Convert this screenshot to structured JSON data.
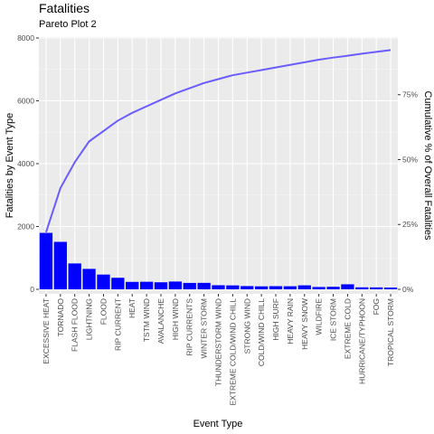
{
  "chart_data": {
    "type": "bar",
    "title": "Fatalities",
    "subtitle": "Pareto Plot 2",
    "xlabel": "Event Type",
    "ylabel": "Fatalities by Event Type",
    "y2label": "Cumulative % of Overall Fatalities",
    "ylim": [
      0,
      8000
    ],
    "yticks": [
      0,
      2000,
      4000,
      6000,
      8000
    ],
    "y2ticks": [
      0,
      25,
      50,
      75
    ],
    "y2tick_labels": [
      "0%",
      "25%",
      "50%",
      "75%"
    ],
    "grid": true,
    "categories": [
      "EXCESSIVE HEAT",
      "TORNADO",
      "FLASH FLOOD",
      "LIGHTNING",
      "FLOOD",
      "RIP CURRENT",
      "HEAT",
      "TSTM WIND",
      "AVALANCHE",
      "HIGH WIND",
      "RIP CURRENTS",
      "WINTER STORM",
      "THUNDERSTORM WIND",
      "EXTREME COLD/WIND CHILL",
      "STRONG WIND",
      "COLD/WIND CHILL",
      "HIGH SURF",
      "HEAVY RAIN",
      "HEAVY SNOW",
      "WILDFIRE",
      "ICE STORM",
      "EXTREME COLD",
      "HURRICANE/TYPHOON",
      "FOG",
      "TROPICAL STORM"
    ],
    "series": [
      {
        "type": "bar",
        "values": [
          1797,
          1511,
          824,
          651,
          470,
          368,
          237,
          241,
          224,
          248,
          204,
          206,
          130,
          125,
          103,
          95,
          101,
          98,
          127,
          75,
          82,
          160,
          64,
          62,
          57
        ],
        "color": "#0000ff"
      },
      {
        "type": "line",
        "values": [
          22,
          39,
          49,
          57,
          61,
          65,
          68,
          70.5,
          73,
          75.5,
          77.5,
          79.5,
          81,
          82.5,
          83.5,
          84.5,
          85.5,
          86.5,
          87.5,
          88.5,
          89.3,
          90,
          90.8,
          91.5,
          92.2
        ],
        "units": "percent",
        "color": "#6a5cff"
      }
    ]
  }
}
